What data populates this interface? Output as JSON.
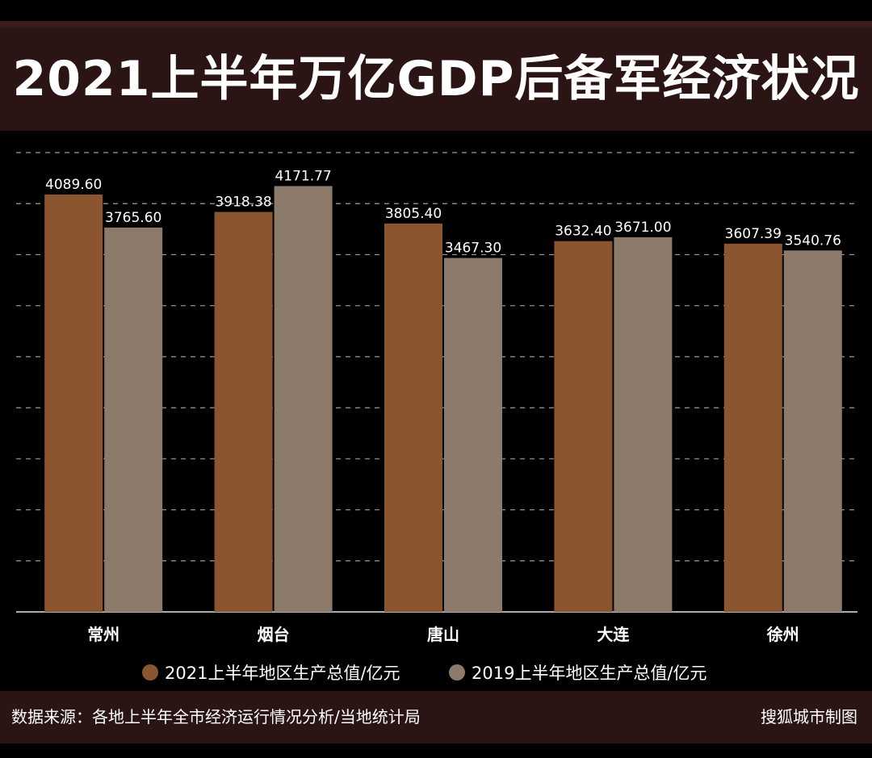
{
  "chart_data": {
    "type": "bar",
    "title": "2021上半年万亿GDP后备军经济状况",
    "categories": [
      "常州",
      "烟台",
      "唐山",
      "大连",
      "徐州"
    ],
    "series": [
      {
        "name": "2021上半年地区生产总值/亿元",
        "values": [
          4089.6,
          3918.38,
          3805.4,
          3632.4,
          3607.39
        ],
        "labels": [
          "4089.60",
          "3918.38",
          "3805.40",
          "3632.40",
          "3607.39"
        ]
      },
      {
        "name": "2019上半年地区生产总值/亿元",
        "values": [
          3765.6,
          4171.77,
          3467.3,
          3671.0,
          3540.76
        ],
        "labels": [
          "3765.60",
          "4171.77",
          "3467.30",
          "3671.00",
          "3540.76"
        ]
      }
    ],
    "xlabel": "",
    "ylabel": "",
    "ylim": [
      0,
      4500
    ],
    "grid": true,
    "legend": "bottom",
    "colors": [
      "#8b5530",
      "#8c7b6b"
    ]
  },
  "footer": {
    "source": "数据来源：各地上半年全市经济运行情况分析/当地统计局",
    "credit": "搜狐城市制图"
  },
  "colors": {
    "background": "#000000",
    "band": "#2b1414",
    "text": "#ffffff",
    "grid": "#cfcfcf"
  }
}
